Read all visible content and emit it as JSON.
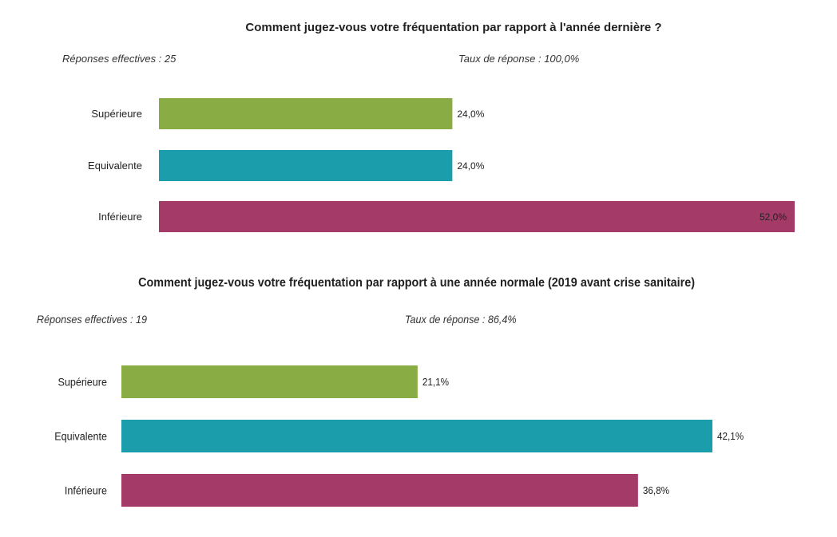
{
  "chart_data": [
    {
      "type": "bar",
      "orientation": "horizontal",
      "title": "Comment jugez-vous votre fréquentation par rapport à l'année dernière ?",
      "responses_label": "Réponses effectives : 25",
      "rate_label": "Taux de réponse : 100,0%",
      "categories": [
        "Supérieure",
        "Equivalente",
        "Inférieure"
      ],
      "values": [
        24.0,
        24.0,
        52.0
      ],
      "value_labels": [
        "24,0%",
        "24,0%",
        "52,0%"
      ],
      "colors": [
        "#8aac44",
        "#1c9dac",
        "#a33a68"
      ],
      "xlim": [
        0,
        52
      ],
      "grid": false,
      "legend": "none"
    },
    {
      "type": "bar",
      "orientation": "horizontal",
      "title": "Comment jugez-vous votre fréquentation par rapport à une année normale (2019 avant crise sanitaire)",
      "responses_label": "Réponses effectives : 19",
      "rate_label": "Taux de réponse : 86,4%",
      "categories": [
        "Supérieure",
        "Equivalente",
        "Inférieure"
      ],
      "values": [
        21.1,
        42.1,
        36.8
      ],
      "value_labels": [
        "21,1%",
        "42,1%",
        "36,8%"
      ],
      "colors": [
        "#8aac44",
        "#1c9dac",
        "#a33a68"
      ],
      "xlim": [
        0,
        42.1
      ],
      "grid": false,
      "legend": "none"
    }
  ]
}
